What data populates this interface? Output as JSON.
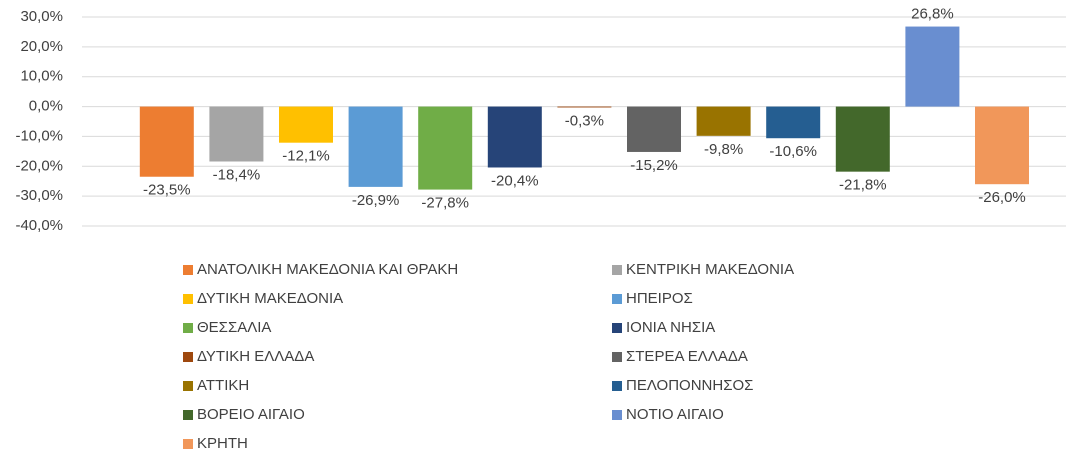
{
  "chart_data": {
    "type": "bar",
    "ylim": [
      -40,
      30
    ],
    "yticks": [
      {
        "value": -40,
        "label": "-40,0%"
      },
      {
        "value": -30,
        "label": "-30,0%"
      },
      {
        "value": -20,
        "label": "-20,0%"
      },
      {
        "value": -10,
        "label": "-10,0%"
      },
      {
        "value": 0,
        "label": "0,0%"
      },
      {
        "value": 10,
        "label": "10,0%"
      },
      {
        "value": 20,
        "label": "20,0%"
      },
      {
        "value": 30,
        "label": "30,0%"
      }
    ],
    "grid": true,
    "legend": "bottom",
    "series": [
      {
        "name": "ΑΝΑΤΟΛΙΚΗ ΜΑΚΕΔΟΝΙΑ ΚΑΙ ΘΡΑΚΗ",
        "color": "#ED7D31",
        "values": [
          -23.5
        ],
        "value_labels": [
          "-23,5%"
        ]
      },
      {
        "name": "ΚΕΝΤΡΙΚΗ ΜΑΚΕΔΟΝΙΑ",
        "color": "#A5A5A5",
        "values": [
          -18.4
        ],
        "value_labels": [
          "-18,4%"
        ]
      },
      {
        "name": "ΔΥΤΙΚΗ ΜΑΚΕΔΟΝΙΑ",
        "color": "#FFC000",
        "values": [
          -12.1
        ],
        "value_labels": [
          "-12,1%"
        ]
      },
      {
        "name": "ΗΠΕΙΡΟΣ",
        "color": "#5B9BD5",
        "values": [
          -26.9
        ],
        "value_labels": [
          "-26,9%"
        ]
      },
      {
        "name": "ΘΕΣΣΑΛΙΑ",
        "color": "#70AD47",
        "values": [
          -27.8
        ],
        "value_labels": [
          "-27,8%"
        ]
      },
      {
        "name": "ΙΟΝΙΑ ΝΗΣΙΑ",
        "color": "#264478",
        "values": [
          -20.4
        ],
        "value_labels": [
          "-20,4%"
        ]
      },
      {
        "name": "ΔΥΤΙΚΗ ΕΛΛΑΔΑ",
        "color": "#9E480E",
        "values": [
          -0.3
        ],
        "value_labels": [
          "-0,3%"
        ]
      },
      {
        "name": "ΣΤΕΡΕΑ ΕΛΛΑΔΑ",
        "color": "#636363",
        "values": [
          -15.2
        ],
        "value_labels": [
          "-15,2%"
        ]
      },
      {
        "name": "ΑΤΤΙΚΗ",
        "color": "#997300",
        "values": [
          -9.8
        ],
        "value_labels": [
          "-9,8%"
        ]
      },
      {
        "name": "ΠΕΛΟΠΟΝΝΗΣΟΣ",
        "color": "#255E91",
        "values": [
          -10.6
        ],
        "value_labels": [
          "-10,6%"
        ]
      },
      {
        "name": "ΒΟΡΕΙΟ ΑΙΓΑΙΟ",
        "color": "#43682B",
        "values": [
          -21.8
        ],
        "value_labels": [
          "-21,8%"
        ]
      },
      {
        "name": "ΝΟΤΙΟ ΑΙΓΑΙΟ",
        "color": "#698ED0",
        "values": [
          26.8
        ],
        "value_labels": [
          "26,8%"
        ]
      },
      {
        "name": "ΚΡΗΤΗ",
        "color": "#F1975A",
        "values": [
          -26.0
        ],
        "value_labels": [
          "-26,0%"
        ]
      }
    ]
  }
}
